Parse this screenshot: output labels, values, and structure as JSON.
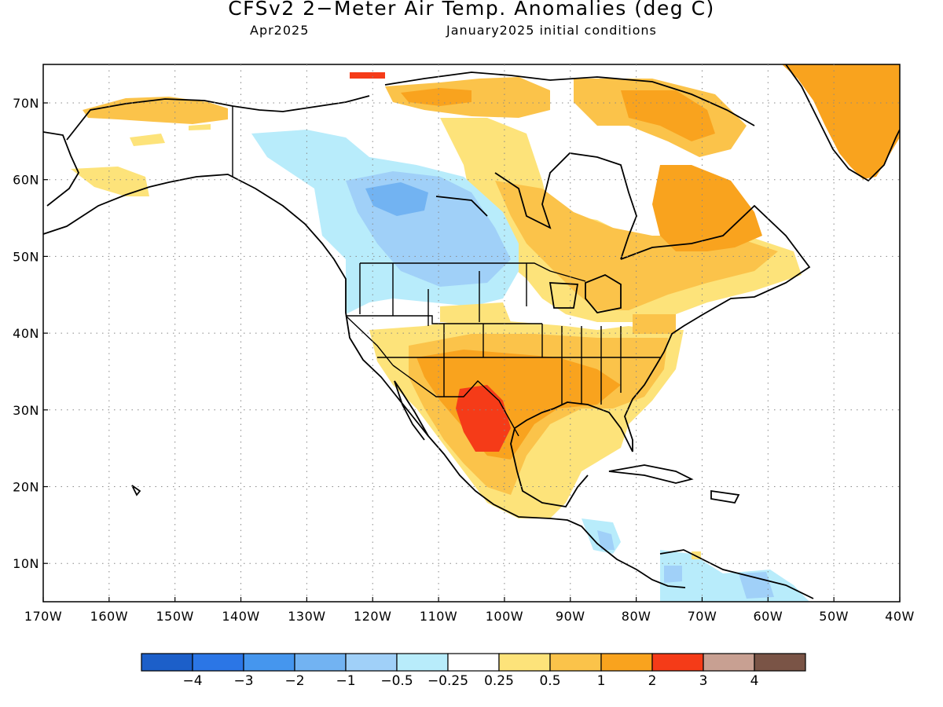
{
  "title": "CFSv2 2−Meter Air Temp. Anomalies (deg C)",
  "subtitle_left": "Apr2025",
  "subtitle_right": "January2025 initial conditions",
  "lat_labels": [
    "70N",
    "60N",
    "50N",
    "40N",
    "30N",
    "20N",
    "10N"
  ],
  "lon_labels": [
    "170W",
    "160W",
    "150W",
    "140W",
    "130W",
    "120W",
    "110W",
    "100W",
    "90W",
    "80W",
    "70W",
    "60W",
    "50W",
    "40W"
  ],
  "legend": {
    "colors": [
      "#1c5fc9",
      "#2b76e6",
      "#4596ee",
      "#72b3f2",
      "#a0d0f8",
      "#b8ecfb",
      "#ffffff",
      "#fde37a",
      "#fbc34a",
      "#f9a31e",
      "#f53b18",
      "#c8a092",
      "#7a5446"
    ],
    "labels": [
      "−4",
      "−3",
      "−2",
      "−1",
      "−0.5",
      "−0.25",
      "0.25",
      "0.5",
      "1",
      "2",
      "3",
      "4"
    ]
  }
}
